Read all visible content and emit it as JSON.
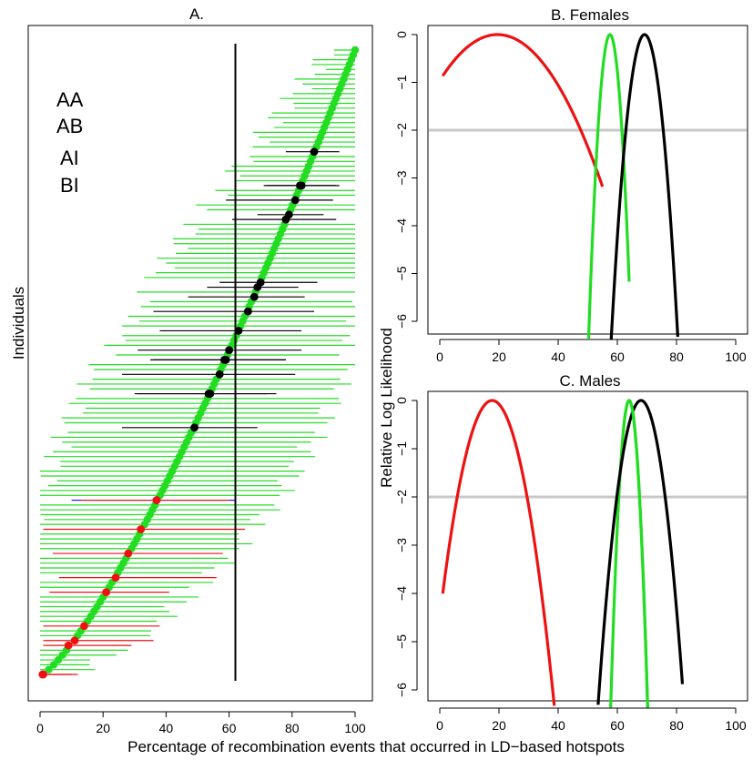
{
  "chart_data": [
    {
      "panel": "A",
      "type": "scatter",
      "title": "A.",
      "xlabel": "Percentage of recombination events that occurred in LD−based hotspots",
      "ylabel": "Individuals",
      "xlim": [
        0,
        100
      ],
      "xticks": [
        "0",
        "20",
        "40",
        "60",
        "80",
        "100"
      ],
      "vline_x": 62,
      "legend": {
        "placement": "top-left",
        "entries": [
          {
            "label": "AA",
            "color": "#22dd22"
          },
          {
            "label": "AB",
            "color": "#000000"
          },
          {
            "label": "AI",
            "color": "#ee1111"
          },
          {
            "label": "BI",
            "color": "#1111ee"
          }
        ]
      },
      "n_individuals": 130,
      "x_min": 0.5,
      "x_max": 100,
      "ci_half_width_max": 32,
      "highlighted_points": [
        {
          "group": "AB",
          "x": 87,
          "lo": 78,
          "hi": 95
        },
        {
          "group": "AB",
          "x": 83,
          "lo": 72,
          "hi": 94
        },
        {
          "group": "AB",
          "x": 82.5,
          "lo": 71,
          "hi": 95
        },
        {
          "group": "AB",
          "x": 81,
          "lo": 59,
          "hi": 93
        },
        {
          "group": "AB",
          "x": 79,
          "lo": 69,
          "hi": 90
        },
        {
          "group": "AB",
          "x": 78,
          "lo": 61,
          "hi": 94
        },
        {
          "group": "AB",
          "x": 70,
          "lo": 57,
          "hi": 88
        },
        {
          "group": "AB",
          "x": 69,
          "lo": 53,
          "hi": 82
        },
        {
          "group": "AB",
          "x": 68,
          "lo": 47,
          "hi": 84
        },
        {
          "group": "AB",
          "x": 66,
          "lo": 36,
          "hi": 87
        },
        {
          "group": "AB",
          "x": 63,
          "lo": 38,
          "hi": 83
        },
        {
          "group": "AB",
          "x": 60,
          "lo": 31,
          "hi": 83
        },
        {
          "group": "AB",
          "x": 59,
          "lo": 35,
          "hi": 78
        },
        {
          "group": "AB",
          "x": 58.5,
          "lo": 36,
          "hi": 78
        },
        {
          "group": "AB",
          "x": 57,
          "lo": 26,
          "hi": 81
        },
        {
          "group": "AB",
          "x": 54,
          "lo": 30,
          "hi": 75
        },
        {
          "group": "AB",
          "x": 53.5,
          "lo": 31,
          "hi": 72
        },
        {
          "group": "AB",
          "x": 49,
          "lo": 26,
          "hi": 69
        },
        {
          "group": "BI",
          "x": 37,
          "lo": 10,
          "hi": 62
        },
        {
          "group": "AI",
          "x": 37,
          "lo": 13,
          "hi": 60
        },
        {
          "group": "AI",
          "x": 32,
          "lo": 1,
          "hi": 65
        },
        {
          "group": "AI",
          "x": 28,
          "lo": 4,
          "hi": 58
        },
        {
          "group": "AI",
          "x": 24,
          "lo": 6,
          "hi": 56
        },
        {
          "group": "AI",
          "x": 21,
          "lo": 3,
          "hi": 41
        },
        {
          "group": "AI",
          "x": 14,
          "lo": 1,
          "hi": 38
        },
        {
          "group": "AI",
          "x": 11,
          "lo": 1,
          "hi": 36
        },
        {
          "group": "AI",
          "x": 9,
          "lo": 1,
          "hi": 29
        },
        {
          "group": "AI",
          "x": 1,
          "lo": 0,
          "hi": 12
        },
        {
          "group": "AI",
          "x": 0.8,
          "lo": 0,
          "hi": 10
        }
      ]
    },
    {
      "panel": "B",
      "type": "line",
      "title": "B. Females",
      "xlim": [
        0,
        100
      ],
      "ylim": [
        -6.2,
        0.1
      ],
      "xticks": [
        "0",
        "20",
        "40",
        "60",
        "80",
        "100"
      ],
      "yticks": [
        "0",
        "−1",
        "−2",
        "−3",
        "−4",
        "−5",
        "−6"
      ],
      "threshold_y": -2,
      "series": [
        {
          "group": "AI",
          "color": "#ee1111",
          "peak_x": 19.5,
          "x_range": [
            1,
            55
          ],
          "curvature": 0.002525
        },
        {
          "group": "AA",
          "color": "#22dd22",
          "peak_x": 57.5,
          "x_range": [
            50,
            64
          ],
          "curvature": 0.1224
        },
        {
          "group": "AB",
          "color": "#000000",
          "peak_x": 69.2,
          "x_range": [
            55,
            82
          ],
          "curvature": 0.0502
        }
      ]
    },
    {
      "panel": "C",
      "type": "line",
      "title": "C. Males",
      "ylabel": "Relative Log Likelihood",
      "xlim": [
        0,
        100
      ],
      "ylim": [
        -6.2,
        0.1
      ],
      "xticks": [
        "0",
        "20",
        "40",
        "60",
        "80",
        "100"
      ],
      "yticks": [
        "0",
        "−1",
        "−2",
        "−3",
        "−4",
        "−5",
        "−6"
      ],
      "threshold_y": -2,
      "series": [
        {
          "group": "AI",
          "color": "#ee1111",
          "peak_x": 17.7,
          "x_range": [
            1,
            40
          ],
          "curvature": 0.01435
        },
        {
          "group": "AA",
          "color": "#22dd22",
          "peak_x": 64,
          "x_range": [
            57,
            72
          ],
          "curvature": 0.163
        },
        {
          "group": "AB",
          "color": "#000000",
          "peak_x": 68,
          "x_range": [
            52,
            82
          ],
          "curvature": 0.03
        },
        {
          "group": "AA",
          "color": "#22dd22",
          "peak_x": 64,
          "x_range": [
            62,
            72
          ],
          "curvature": 0.163
        }
      ]
    }
  ]
}
